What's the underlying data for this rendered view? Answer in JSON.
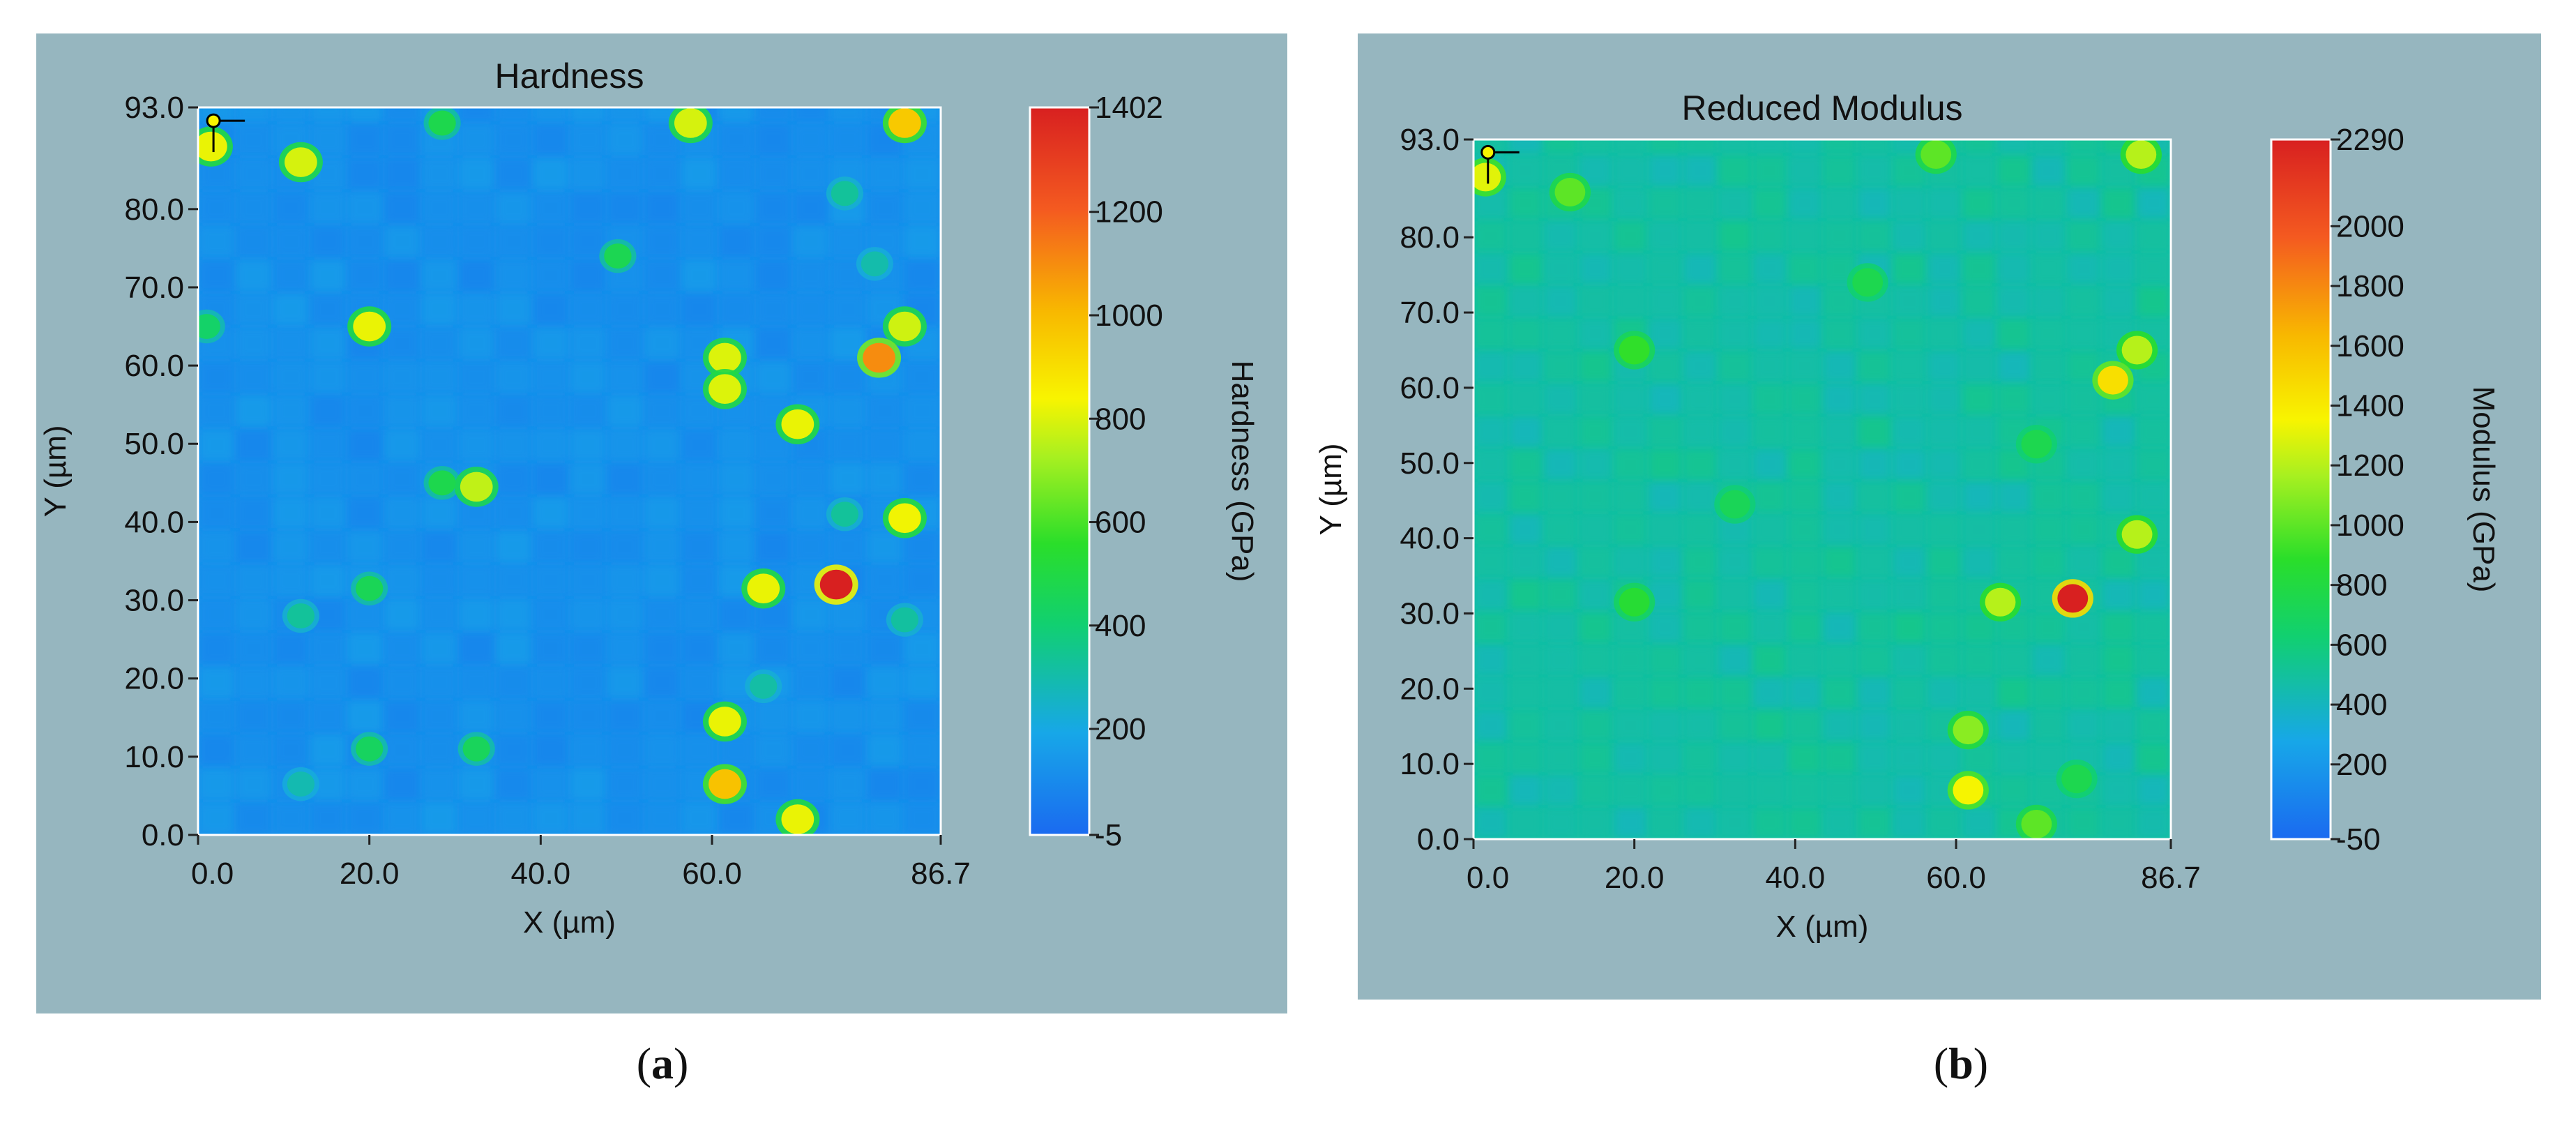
{
  "captions": {
    "a_pre": "(",
    "a_letter": "a",
    "a_post": ")",
    "b_pre": "(",
    "b_letter": "b",
    "b_post": ")"
  },
  "chart_data": [
    {
      "type": "heatmap",
      "title": "Hardness",
      "xlabel": "X (µm)",
      "ylabel": "Y (µm)",
      "colorbar_label": "Hardness (GPa)",
      "xlim": [
        0,
        86.7
      ],
      "ylim": [
        0,
        93.0
      ],
      "x_ticks": [
        "0.0",
        "20.0",
        "40.0",
        "60.0",
        "86.7"
      ],
      "y_ticks": [
        "0.0",
        "10.0",
        "20.0",
        "30.0",
        "40.0",
        "50.0",
        "60.0",
        "70.0",
        "80.0",
        "93.0"
      ],
      "colorbar_range": [
        -5,
        1402
      ],
      "colorbar_ticks": [
        "1402",
        "1200",
        "1000",
        "800",
        "600",
        "400",
        "200",
        "-5"
      ],
      "colorbar_tick_values": [
        1402,
        1200,
        1000,
        800,
        600,
        400,
        200,
        -5
      ],
      "background_level": 120,
      "hotspots": [
        {
          "x": 1.5,
          "y": 88,
          "value": 820
        },
        {
          "x": 12,
          "y": 86,
          "value": 790
        },
        {
          "x": 28.5,
          "y": 91,
          "value": 480
        },
        {
          "x": 57.5,
          "y": 91,
          "value": 790
        },
        {
          "x": 82.5,
          "y": 91,
          "value": 960
        },
        {
          "x": 75.5,
          "y": 82,
          "value": 330
        },
        {
          "x": 49,
          "y": 74,
          "value": 470
        },
        {
          "x": 79,
          "y": 73,
          "value": 300
        },
        {
          "x": 1,
          "y": 65,
          "value": 420
        },
        {
          "x": 20,
          "y": 65,
          "value": 820
        },
        {
          "x": 82.5,
          "y": 65,
          "value": 780
        },
        {
          "x": 61.5,
          "y": 61,
          "value": 800
        },
        {
          "x": 79.5,
          "y": 61,
          "value": 1100
        },
        {
          "x": 61.5,
          "y": 57,
          "value": 800
        },
        {
          "x": 70,
          "y": 52.5,
          "value": 820
        },
        {
          "x": 28.5,
          "y": 45,
          "value": 480
        },
        {
          "x": 32.5,
          "y": 44.5,
          "value": 760
        },
        {
          "x": 82.5,
          "y": 40.5,
          "value": 830
        },
        {
          "x": 75.5,
          "y": 41,
          "value": 330
        },
        {
          "x": 20,
          "y": 31.5,
          "value": 460
        },
        {
          "x": 66,
          "y": 31.5,
          "value": 820
        },
        {
          "x": 74.5,
          "y": 32,
          "value": 1402
        },
        {
          "x": 12,
          "y": 28,
          "value": 330
        },
        {
          "x": 82.5,
          "y": 27.5,
          "value": 320
        },
        {
          "x": 66,
          "y": 19,
          "value": 310
        },
        {
          "x": 61.5,
          "y": 14.5,
          "value": 820
        },
        {
          "x": 20,
          "y": 11,
          "value": 440
        },
        {
          "x": 32.5,
          "y": 11,
          "value": 450
        },
        {
          "x": 61.5,
          "y": 6.5,
          "value": 980
        },
        {
          "x": 12,
          "y": 6.5,
          "value": 290
        },
        {
          "x": 70,
          "y": 2,
          "value": 820
        }
      ]
    },
    {
      "type": "heatmap",
      "title": "Reduced Modulus",
      "xlabel": "X (µm)",
      "ylabel": "Y (µm)",
      "colorbar_label": "Modulus (GPa)",
      "xlim": [
        0,
        86.7
      ],
      "ylim": [
        0,
        93.0
      ],
      "x_ticks": [
        "0.0",
        "20.0",
        "40.0",
        "60.0",
        "86.7"
      ],
      "y_ticks": [
        "0.0",
        "10.0",
        "20.0",
        "30.0",
        "40.0",
        "50.0",
        "60.0",
        "70.0",
        "80.0",
        "93.0"
      ],
      "colorbar_range": [
        -50,
        2290
      ],
      "colorbar_ticks": [
        "2290",
        "2000",
        "1800",
        "1600",
        "1400",
        "1200",
        "1000",
        "800",
        "600",
        "400",
        "200",
        "-50"
      ],
      "colorbar_tick_values": [
        2290,
        2000,
        1800,
        1600,
        1400,
        1200,
        1000,
        800,
        600,
        400,
        200,
        -50
      ],
      "background_level": 480,
      "hotspots": [
        {
          "x": 1.5,
          "y": 88,
          "value": 1300
        },
        {
          "x": 12,
          "y": 86,
          "value": 1000
        },
        {
          "x": 57.5,
          "y": 91,
          "value": 1000
        },
        {
          "x": 83,
          "y": 91,
          "value": 1200
        },
        {
          "x": 20,
          "y": 65,
          "value": 900
        },
        {
          "x": 82.5,
          "y": 65,
          "value": 1200
        },
        {
          "x": 79.5,
          "y": 61,
          "value": 1450
        },
        {
          "x": 49,
          "y": 74,
          "value": 750
        },
        {
          "x": 70,
          "y": 52.5,
          "value": 750
        },
        {
          "x": 32.5,
          "y": 44.5,
          "value": 720
        },
        {
          "x": 82.5,
          "y": 40.5,
          "value": 1200
        },
        {
          "x": 20,
          "y": 31.5,
          "value": 850
        },
        {
          "x": 65.5,
          "y": 31.5,
          "value": 1200
        },
        {
          "x": 74.5,
          "y": 32,
          "value": 2290
        },
        {
          "x": 61.5,
          "y": 14.5,
          "value": 1100
        },
        {
          "x": 61.5,
          "y": 6.5,
          "value": 1350
        },
        {
          "x": 70,
          "y": 2,
          "value": 1000
        },
        {
          "x": 75,
          "y": 8,
          "value": 750
        }
      ]
    }
  ]
}
